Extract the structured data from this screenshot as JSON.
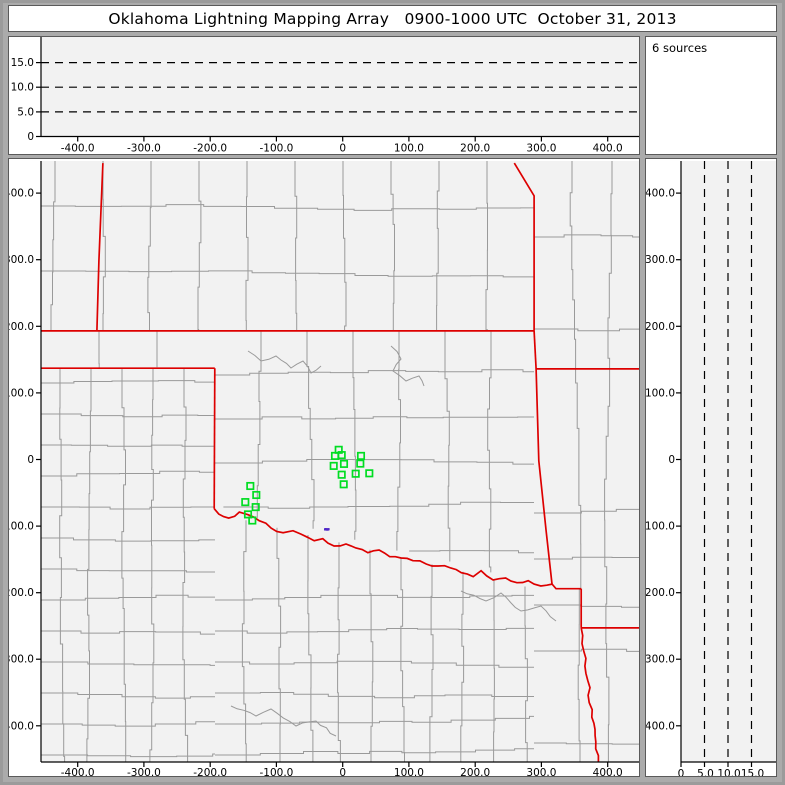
{
  "title": "Oklahoma Lightning Mapping Array   0900-1000 UTC  October 31, 2013",
  "sources_panel": {
    "label": "6 sources"
  },
  "chart_data": {
    "type": "scatter",
    "description": "LMA plan-view map with altitude projection panels; green squares are LMA stations, small dots are VHF sources",
    "x_axis": {
      "tick_values": [
        -400,
        -300,
        -200,
        -100,
        0,
        100,
        200,
        300,
        400
      ],
      "tick_labels": [
        "-400.0",
        "-300.0",
        "-200.0",
        "-100.0",
        "0",
        "100.0",
        "200.0",
        "300.0",
        "400.0"
      ],
      "range_km": [
        -455.4,
        450.3
      ]
    },
    "y_axis": {
      "tick_values": [
        400,
        300,
        200,
        100,
        0,
        -100,
        -200,
        -300,
        -400
      ],
      "tick_labels": [
        "400.0",
        "300.0",
        "200.0",
        "100.0",
        "0",
        "-100.0",
        "-200.0",
        "-300.0",
        "-400.0"
      ],
      "range_km": [
        -454.3,
        448.2
      ]
    },
    "alt_axis": {
      "tick_values": [
        0,
        5,
        10,
        15
      ],
      "tick_labels": [
        "0",
        "5.0",
        "10.0",
        "15.0"
      ],
      "range_km": [
        0,
        20.2
      ],
      "gridlines_km": [
        5,
        10,
        15
      ]
    },
    "stations_km": [
      [
        -6.0,
        14.5
      ],
      [
        -11.6,
        5.4
      ],
      [
        -1.5,
        6.5
      ],
      [
        27.6,
        5.4
      ],
      [
        -13.6,
        -9.7
      ],
      [
        2.0,
        -6.6
      ],
      [
        26.6,
        -6.2
      ],
      [
        -1.5,
        -22.8
      ],
      [
        19.6,
        -21.3
      ],
      [
        40.1,
        -20.7
      ],
      [
        1.5,
        -37.3
      ],
      [
        -139.5,
        -39.8
      ],
      [
        -130.4,
        -53.4
      ],
      [
        -147.0,
        -64.0
      ],
      [
        -131.3,
        -71.5
      ],
      [
        -142.9,
        -82.5
      ],
      [
        -136.4,
        -91.6
      ]
    ],
    "sources_km": [
      [
        -26.5,
        -105.0
      ],
      [
        -25.6,
        -104.6
      ],
      [
        -24.2,
        -105.3
      ],
      [
        -23.0,
        -104.8
      ],
      [
        -22.2,
        -105.1
      ],
      [
        -21.4,
        -104.7
      ]
    ],
    "colors": {
      "station": "#00dd22",
      "source": "#5029c8",
      "state_border": "#dd0000",
      "county_line": "#9a9a9a",
      "plot_bg": "#f2f2f2",
      "axis": "#000000"
    },
    "state_borders_km": [
      {
        "name": "colorado-kansas",
        "pts": [
          [
            -362,
            445
          ],
          [
            -368,
            298
          ],
          [
            -371,
            193
          ]
        ]
      },
      {
        "name": "kansas-oklahoma-37N",
        "pts": [
          [
            -455,
            193
          ],
          [
            289,
            193
          ]
        ]
      },
      {
        "name": "panhandle-south-36.5N",
        "pts": [
          [
            -455,
            137
          ],
          [
            -193,
            137
          ]
        ]
      },
      {
        "name": "oklahoma-west-100W",
        "pts": [
          [
            -193,
            137
          ],
          [
            -194,
            -74
          ]
        ]
      },
      {
        "name": "red-river-ok-tx",
        "wiggle": true,
        "pts": [
          [
            -194,
            -74
          ],
          [
            -187,
            -82
          ],
          [
            -172,
            -88
          ],
          [
            -156,
            -79
          ],
          [
            -143,
            -83
          ],
          [
            -126,
            -92
          ],
          [
            -108,
            -103
          ],
          [
            -90,
            -110
          ],
          [
            -75,
            -107
          ],
          [
            -63,
            -112
          ],
          [
            -43,
            -122
          ],
          [
            -30,
            -119
          ],
          [
            -13,
            -130
          ],
          [
            5,
            -127
          ],
          [
            20,
            -133
          ],
          [
            38,
            -140
          ],
          [
            55,
            -136
          ],
          [
            71,
            -146
          ],
          [
            88,
            -148
          ],
          [
            106,
            -152
          ],
          [
            126,
            -157
          ],
          [
            144,
            -160
          ],
          [
            163,
            -163
          ],
          [
            179,
            -170
          ],
          [
            197,
            -176
          ],
          [
            209,
            -167
          ],
          [
            227,
            -181
          ],
          [
            246,
            -178
          ],
          [
            263,
            -185
          ],
          [
            280,
            -182
          ],
          [
            299,
            -190
          ],
          [
            317,
            -187
          ]
        ]
      },
      {
        "name": "missouri-river-ks-mo",
        "pts": [
          [
            259,
            445
          ],
          [
            289,
            396
          ],
          [
            289,
            193
          ]
        ]
      },
      {
        "name": "kansas-missouri-corner",
        "pts": [
          [
            289,
            193
          ],
          [
            292,
            136
          ]
        ]
      },
      {
        "name": "missouri-arkansas-36.5N",
        "pts": [
          [
            292,
            136
          ],
          [
            450,
            136
          ]
        ]
      },
      {
        "name": "oklahoma-arkansas",
        "pts": [
          [
            292,
            136
          ],
          [
            296,
            -2
          ],
          [
            307,
            -107
          ],
          [
            316,
            -187
          ]
        ]
      },
      {
        "name": "arkansas-texas-jog",
        "pts": [
          [
            316,
            -187
          ],
          [
            322,
            -194
          ],
          [
            360,
            -194
          ]
        ]
      },
      {
        "name": "texas-arkansas-vertical",
        "pts": [
          [
            360,
            -194
          ],
          [
            360,
            -253
          ]
        ]
      },
      {
        "name": "arkansas-louisiana-33N",
        "pts": [
          [
            360,
            -253
          ],
          [
            450,
            -253
          ]
        ]
      },
      {
        "name": "texas-louisiana",
        "wiggle": true,
        "pts": [
          [
            360,
            -253
          ],
          [
            364,
            -288
          ],
          [
            370,
            -332
          ],
          [
            376,
            -387
          ],
          [
            382,
            -424
          ],
          [
            386,
            -455
          ]
        ]
      }
    ]
  }
}
